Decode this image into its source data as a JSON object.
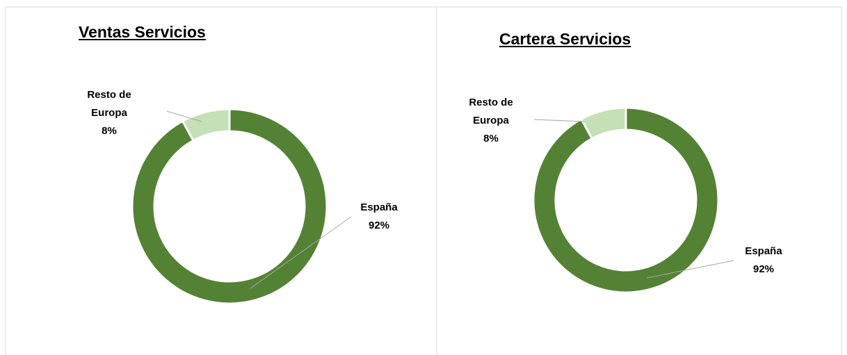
{
  "chart_data": [
    {
      "type": "donut",
      "title": "Ventas Servicios",
      "categories": [
        "España",
        "Resto de Europa"
      ],
      "values": [
        92,
        8
      ],
      "value_labels": [
        "92%",
        "8%"
      ],
      "colors": [
        "#548235",
        "#c5e0b4"
      ]
    },
    {
      "type": "donut",
      "title": "Cartera Servicios",
      "categories": [
        "España",
        "Resto de Europa"
      ],
      "values": [
        92,
        8
      ],
      "value_labels": [
        "92%",
        "8%"
      ],
      "colors": [
        "#548235",
        "#c5e0b4"
      ]
    }
  ]
}
